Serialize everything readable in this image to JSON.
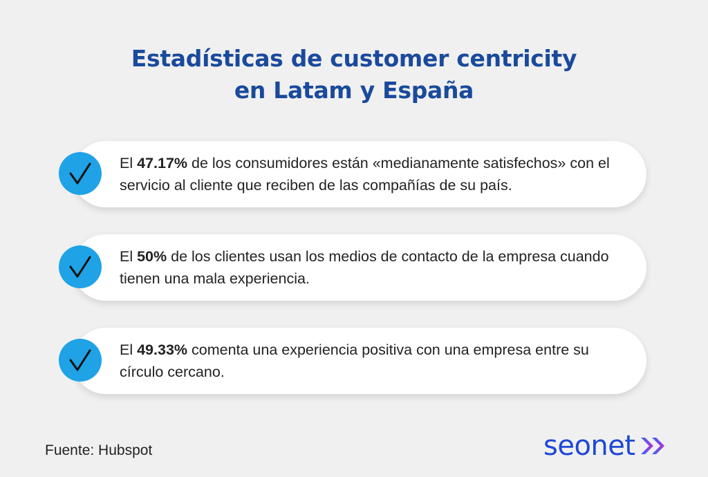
{
  "title": {
    "line1": "Estadísticas de customer centricity",
    "line2": "en Latam y España"
  },
  "stats": [
    {
      "prefix": "El ",
      "value": "47.17%",
      "suffix": " de los consumidores están «medianamente satisfechos» con el servicio al cliente que reciben de las compañías de su país.",
      "icon": "check-icon"
    },
    {
      "prefix": "El ",
      "value": "50%",
      "suffix": " de los clientes usan los medios de contacto de la empresa cuando tienen una mala experiencia.",
      "icon": "check-icon"
    },
    {
      "prefix": "El ",
      "value": "49.33%",
      "suffix": " comenta una experiencia positiva con una empresa entre su círculo cercano.",
      "icon": "check-icon"
    }
  ],
  "source": "Fuente: Hubspot",
  "logo": {
    "text": "seonet",
    "icon": "double-chevron-right-icon"
  },
  "colors": {
    "title": "#1a4a9c",
    "check_circle": "#1fa2e6",
    "logo": "#1e48d6",
    "logo_chevron_gradient": [
      "#2a6cf0",
      "#c02ad8"
    ],
    "background": "#f0f0f0"
  }
}
